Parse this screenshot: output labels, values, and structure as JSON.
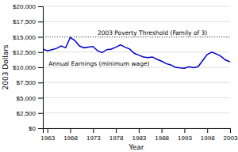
{
  "chart_data": {
    "type": "line",
    "xlabel": "Year",
    "ylabel": "2003 Dollars",
    "x": [
      1962,
      1963,
      1964,
      1965,
      1966,
      1967,
      1968,
      1969,
      1970,
      1971,
      1972,
      1973,
      1974,
      1975,
      1976,
      1977,
      1978,
      1979,
      1980,
      1981,
      1982,
      1983,
      1984,
      1985,
      1986,
      1987,
      1988,
      1989,
      1990,
      1991,
      1992,
      1993,
      1994,
      1995,
      1996,
      1997,
      1998,
      1999,
      2000,
      2001,
      2002,
      2003
    ],
    "values": [
      13000,
      12700,
      12900,
      13100,
      13500,
      13200,
      14900,
      14400,
      13500,
      13200,
      13300,
      13400,
      12700,
      12400,
      12900,
      13000,
      13300,
      13700,
      13300,
      13000,
      12300,
      12000,
      11700,
      11600,
      11700,
      11300,
      11000,
      10600,
      10400,
      10000,
      9900,
      9850,
      10100,
      9950,
      10100,
      11100,
      12100,
      12500,
      12200,
      11800,
      11200,
      10900
    ],
    "color": "#0000cc",
    "threshold": {
      "value": 14950,
      "label": "2003 Poverty Threshold (Family of 3)",
      "color": "#555555",
      "line_style": "dotted"
    },
    "annotations": [
      {
        "text": "Annual Earnings (minimum wage)"
      }
    ],
    "xlim": [
      1962,
      2003
    ],
    "xticks": [
      1963,
      1968,
      1973,
      1978,
      1983,
      1988,
      1993,
      1998,
      2003
    ],
    "ylim": [
      0,
      20000
    ],
    "yticks": [
      {
        "value": 0,
        "label": "$0"
      },
      {
        "value": 2500,
        "label": "$2,500"
      },
      {
        "value": 5000,
        "label": "$5,000"
      },
      {
        "value": 7500,
        "label": "$7,500"
      },
      {
        "value": 10000,
        "label": "$10,000"
      },
      {
        "value": 12500,
        "label": "$12,500"
      },
      {
        "value": 15000,
        "label": "$15,000"
      },
      {
        "value": 17500,
        "label": "$17,500"
      },
      {
        "value": 20000,
        "label": "$20,000"
      }
    ],
    "grid": true
  }
}
